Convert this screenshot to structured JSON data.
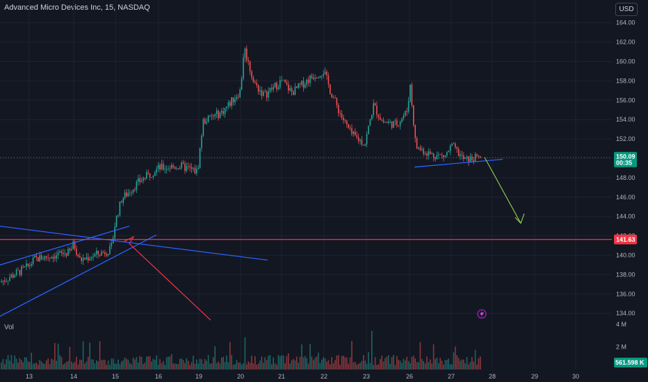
{
  "header": {
    "title": "Advanced Micro Devices Inc, 15, NASDAQ",
    "currency": "USD",
    "volume_label": "Vol"
  },
  "colors": {
    "background": "#131722",
    "grid": "#1f2230",
    "up": "#26a69a",
    "down": "#ef5350",
    "trendline": "#2962ff",
    "horizontal_line": "#f23645",
    "arrow_projection": "#8bc34a",
    "price_badge": "#089981",
    "axis_text": "#b2b5be"
  },
  "chart_data": {
    "type": "candlestick",
    "symbol": "AMD",
    "interval": "15",
    "exchange": "NASDAQ",
    "price_axis": {
      "ticks": [
        134,
        136,
        138,
        140,
        142,
        144,
        146,
        148,
        150,
        152,
        154,
        156,
        158,
        160,
        162,
        164
      ],
      "tick_labels": [
        "134.00",
        "136.00",
        "138.00",
        "140.00",
        "142.00",
        "144.00",
        "146.00",
        "148.00",
        "150.00",
        "152.00",
        "154.00",
        "156.00",
        "158.00",
        "160.00",
        "162.00",
        "164.00"
      ],
      "range": [
        133.0,
        165.0
      ]
    },
    "time_axis": {
      "labels": [
        "13",
        "14",
        "15",
        "16",
        "19",
        "20",
        "21",
        "22",
        "23",
        "26",
        "27",
        "28",
        "29",
        "30"
      ]
    },
    "volume_axis": {
      "tick_labels": [
        "4 M",
        "2 M"
      ],
      "ticks": [
        4000000,
        2000000
      ]
    },
    "current_price": {
      "value": 150.09,
      "label": "150.09",
      "countdown": "00:35"
    },
    "horizontal_level": {
      "value": 141.63,
      "label": "141.63"
    },
    "current_volume": {
      "label": "561.598 K"
    },
    "daily_closes": [
      {
        "day": "13",
        "open": 137.0,
        "close": 139.8
      },
      {
        "day": "14",
        "open": 140.0,
        "close": 141.0
      },
      {
        "day": "15",
        "open": 142.0,
        "close": 148.5
      },
      {
        "day": "16",
        "open": 148.0,
        "close": 149.2
      },
      {
        "day": "19",
        "open": 149.5,
        "close": 156.5
      },
      {
        "day": "20",
        "open": 157.0,
        "close": 157.5
      },
      {
        "day": "21",
        "open": 157.5,
        "close": 158.0
      },
      {
        "day": "22",
        "open": 158.5,
        "close": 152.0
      },
      {
        "day": "23",
        "open": 153.0,
        "close": 154.5
      },
      {
        "day": "26",
        "open": 155.0,
        "close": 150.3
      },
      {
        "day": "27",
        "open": 150.5,
        "close": 150.1
      }
    ],
    "annotations": [
      "ascending trendline from 13 to 15",
      "descending trendline from 13 to 20",
      "support line 149.4 on 26-27",
      "red projection line from 15 to 19",
      "green projection arrow down toward 142"
    ]
  }
}
